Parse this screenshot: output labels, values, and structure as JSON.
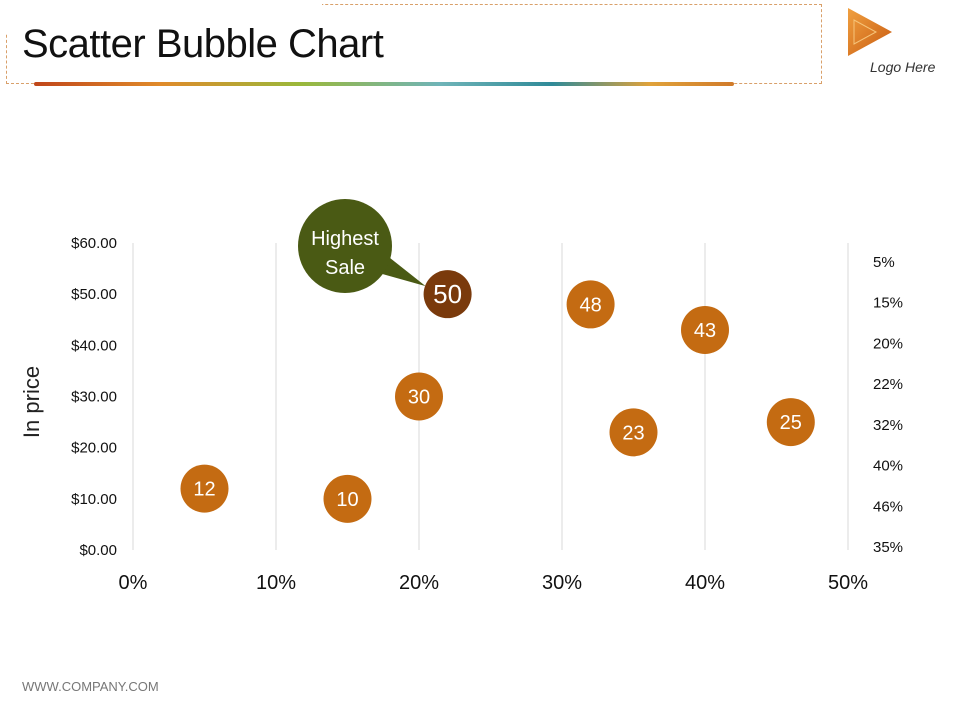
{
  "header": {
    "title": "Scatter Bubble Chart",
    "logo_text": "Logo Here"
  },
  "footer": {
    "text": "WWW.COMPANY.COM"
  },
  "colors": {
    "bubble": "#c46b12",
    "bubble_highlight": "#7a3a0c",
    "callout": "#4a5a14",
    "gridline": "#d9d9d9",
    "logo": "#e07a1a"
  },
  "chart_data": {
    "type": "scatter",
    "ylabel": "In price",
    "xlim": [
      0,
      50
    ],
    "ylim": [
      0,
      60
    ],
    "x_ticks": [
      "0%",
      "10%",
      "20%",
      "30%",
      "40%",
      "50%"
    ],
    "y_ticks": [
      "$0.00",
      "$10.00",
      "$20.00",
      "$30.00",
      "$40.00",
      "$50.00",
      "$60.00"
    ],
    "right_labels": [
      "5%",
      "15%",
      "20%",
      "22%",
      "32%",
      "40%",
      "46%",
      "35%"
    ],
    "points": [
      {
        "x": 5,
        "y": 12,
        "label": "12"
      },
      {
        "x": 15,
        "y": 10,
        "label": "10"
      },
      {
        "x": 20,
        "y": 30,
        "label": "30"
      },
      {
        "x": 22,
        "y": 50,
        "label": "50",
        "highlight": true
      },
      {
        "x": 32,
        "y": 48,
        "label": "48"
      },
      {
        "x": 35,
        "y": 23,
        "label": "23"
      },
      {
        "x": 40,
        "y": 43,
        "label": "43"
      },
      {
        "x": 46,
        "y": 25,
        "label": "25"
      }
    ],
    "annotation": {
      "text_line1": "Highest",
      "text_line2": "Sale"
    },
    "grid": true
  }
}
